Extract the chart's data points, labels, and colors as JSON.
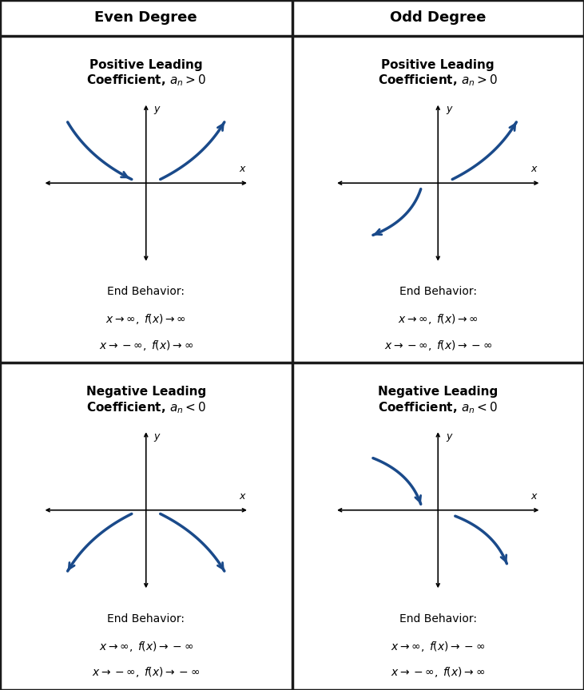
{
  "col_headers": [
    "Even Degree",
    "Odd Degree"
  ],
  "bg_color": "#ffffff",
  "border_color": "#1a1a1a",
  "arrow_color": "#1a4a8a",
  "text_color": "#000000",
  "header_fontsize": 13,
  "title_fontsize": 11,
  "eb_label_fontsize": 10,
  "eb_math_fontsize": 10,
  "end_behavior": [
    {
      "label": "End Behavior:",
      "line1": "$x \\rightarrow \\infty,\\; f(x) \\rightarrow \\infty$",
      "line2": "$x \\rightarrow -\\infty,\\; f(x) \\rightarrow \\infty$"
    },
    {
      "label": "End Behavior:",
      "line1": "$x \\rightarrow \\infty,\\; f(x) \\rightarrow \\infty$",
      "line2": "$x \\rightarrow -\\infty,\\; f(x) \\rightarrow -\\infty$"
    },
    {
      "label": "End Behavior:",
      "line1": "$x \\rightarrow \\infty,\\; f(x) \\rightarrow -\\infty$",
      "line2": "$x \\rightarrow -\\infty,\\; f(x) \\rightarrow -\\infty$"
    },
    {
      "label": "End Behavior:",
      "line1": "$x \\rightarrow \\infty,\\; f(x) \\rightarrow -\\infty$",
      "line2": "$x \\rightarrow -\\infty,\\; f(x) \\rightarrow \\infty$"
    }
  ],
  "panels": [
    {
      "col": 0,
      "row": 0,
      "title": "Positive Leading\nCoefficient, $a_n > 0$",
      "eb_idx": 0,
      "curves": [
        {
          "side": "left_up"
        },
        {
          "side": "right_up"
        }
      ]
    },
    {
      "col": 1,
      "row": 0,
      "title": "Positive Leading\nCoefficient, $a_n > 0$",
      "eb_idx": 1,
      "curves": [
        {
          "side": "right_up"
        },
        {
          "side": "left_down_lower"
        }
      ]
    },
    {
      "col": 0,
      "row": 1,
      "title": "Negative Leading\nCoefficient, $a_n < 0$",
      "eb_idx": 2,
      "curves": [
        {
          "side": "left_down"
        },
        {
          "side": "right_down"
        }
      ]
    },
    {
      "col": 1,
      "row": 1,
      "title": "Negative Leading\nCoefficient, $a_n < 0$",
      "eb_idx": 3,
      "curves": [
        {
          "side": "left_up_upper"
        },
        {
          "side": "right_down_lower"
        }
      ]
    }
  ]
}
